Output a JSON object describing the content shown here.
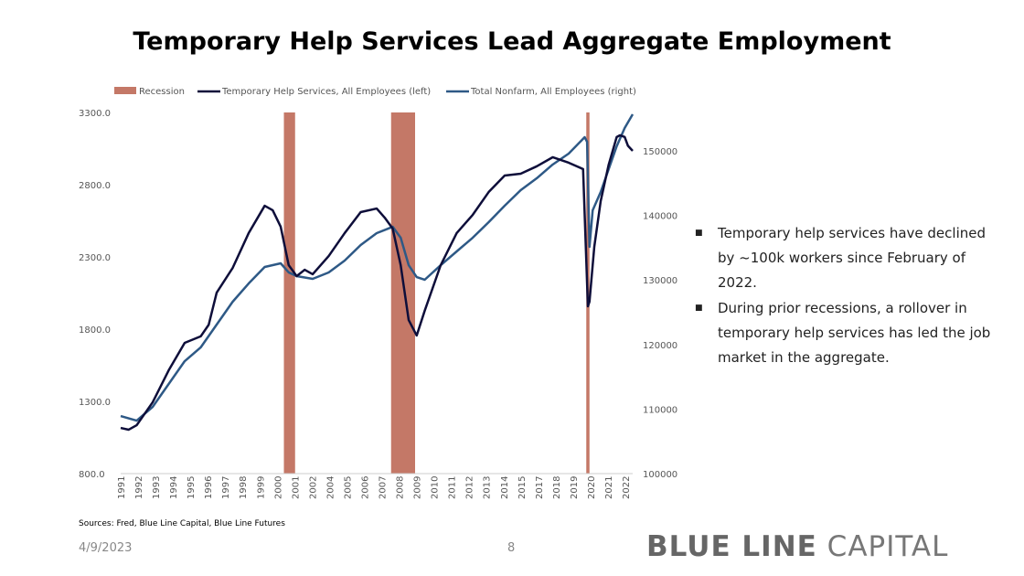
{
  "chart_data": {
    "type": "line",
    "title": "Temporary Help Services Lead Aggregate Employment",
    "legend": [
      "Recession",
      "Temporary Help Services, All Employees (left)",
      "Total Nonfarm, All Employees (right)"
    ],
    "legend_position": "top",
    "colors": {
      "recession": "#c47867",
      "temp": "#0e0e3a",
      "nonfarm": "#2e5986"
    },
    "x_ticks": [
      "1991",
      "1992",
      "1993",
      "1994",
      "1995",
      "1996",
      "1997",
      "1998",
      "1999",
      "2000",
      "2001",
      "2002",
      "2004",
      "2005",
      "2006",
      "2007",
      "2008",
      "2009",
      "2010",
      "2011",
      "2012",
      "2013",
      "2014",
      "2015",
      "2017",
      "2018",
      "2019",
      "2020",
      "2021",
      "2022"
    ],
    "xlim": [
      1991,
      2023
    ],
    "y_left": {
      "ticks": [
        "800.0",
        "1300.0",
        "1800.0",
        "2300.0",
        "2800.0",
        "3300.0"
      ],
      "range": [
        800,
        3300
      ]
    },
    "y_right": {
      "ticks": [
        "100000",
        "110000",
        "120000",
        "130000",
        "140000",
        "150000"
      ],
      "range": [
        100000,
        155950
      ]
    },
    "recessions": [
      [
        2001.2,
        2001.9
      ],
      [
        2007.9,
        2009.4
      ],
      [
        2020.1,
        2020.3
      ]
    ],
    "series": [
      {
        "name": "Temporary Help Services, All Employees (left)",
        "axis": "left",
        "x": [
          1991,
          1991.5,
          1992,
          1993,
          1994,
          1995,
          1996,
          1996.5,
          1997,
          1998,
          1999,
          2000,
          2000.5,
          2001,
          2001.5,
          2002,
          2002.5,
          2003,
          2004,
          2005,
          2006,
          2007,
          2007.5,
          2008,
          2008.5,
          2009,
          2009.5,
          2010,
          2011,
          2012,
          2013,
          2014,
          2015,
          2016,
          2017,
          2018,
          2019,
          2019.9,
          2020.2,
          2020.3,
          2020.6,
          2021,
          2021.5,
          2022,
          2022.2,
          2022.5,
          2022.7,
          2023
        ],
        "values": [
          1116,
          1104,
          1135,
          1294,
          1515,
          1705,
          1750,
          1830,
          2053,
          2224,
          2465,
          2654,
          2623,
          2509,
          2243,
          2167,
          2211,
          2180,
          2306,
          2465,
          2610,
          2635,
          2572,
          2496,
          2243,
          1863,
          1756,
          1927,
          2243,
          2465,
          2591,
          2749,
          2863,
          2876,
          2927,
          2990,
          2952,
          2908,
          1958,
          1990,
          2370,
          2686,
          2939,
          3130,
          3142,
          3130,
          3070,
          3034
        ]
      },
      {
        "name": "Total Nonfarm, All Employees (right)",
        "axis": "right",
        "x": [
          1991,
          1992,
          1993,
          1994,
          1995,
          1996,
          1997,
          1998,
          1999,
          2000,
          2001,
          2001.5,
          2002,
          2003,
          2004,
          2005,
          2006,
          2007,
          2008,
          2008.5,
          2009,
          2009.5,
          2010,
          2011,
          2012,
          2013,
          2014,
          2015,
          2016,
          2017,
          2018,
          2019,
          2020,
          2020.15,
          2020.3,
          2020.5,
          2021,
          2021.5,
          2022,
          2022.5,
          2023
        ],
        "values": [
          108920,
          108200,
          110340,
          113880,
          117420,
          119550,
          123090,
          126630,
          129460,
          132010,
          132580,
          131170,
          130600,
          130170,
          131160,
          133000,
          135410,
          137250,
          138240,
          136540,
          132290,
          130450,
          130030,
          132290,
          134420,
          136540,
          138950,
          141500,
          143910,
          145750,
          147880,
          149580,
          152120,
          151400,
          135130,
          140790,
          143630,
          147170,
          150710,
          153540,
          155670
        ]
      }
    ]
  },
  "bullets": [
    "Temporary help services have declined by ~100k workers since February of 2022.",
    "During prior recessions, a rollover in temporary help services has led the job market in the aggregate."
  ],
  "footer": {
    "sources": "Sources: Fred, Blue Line Capital, Blue Line Futures",
    "date": "4/9/2023",
    "page": "8",
    "logo_bold": "BLUE LINE",
    "logo_rest": " CAPITAL"
  }
}
